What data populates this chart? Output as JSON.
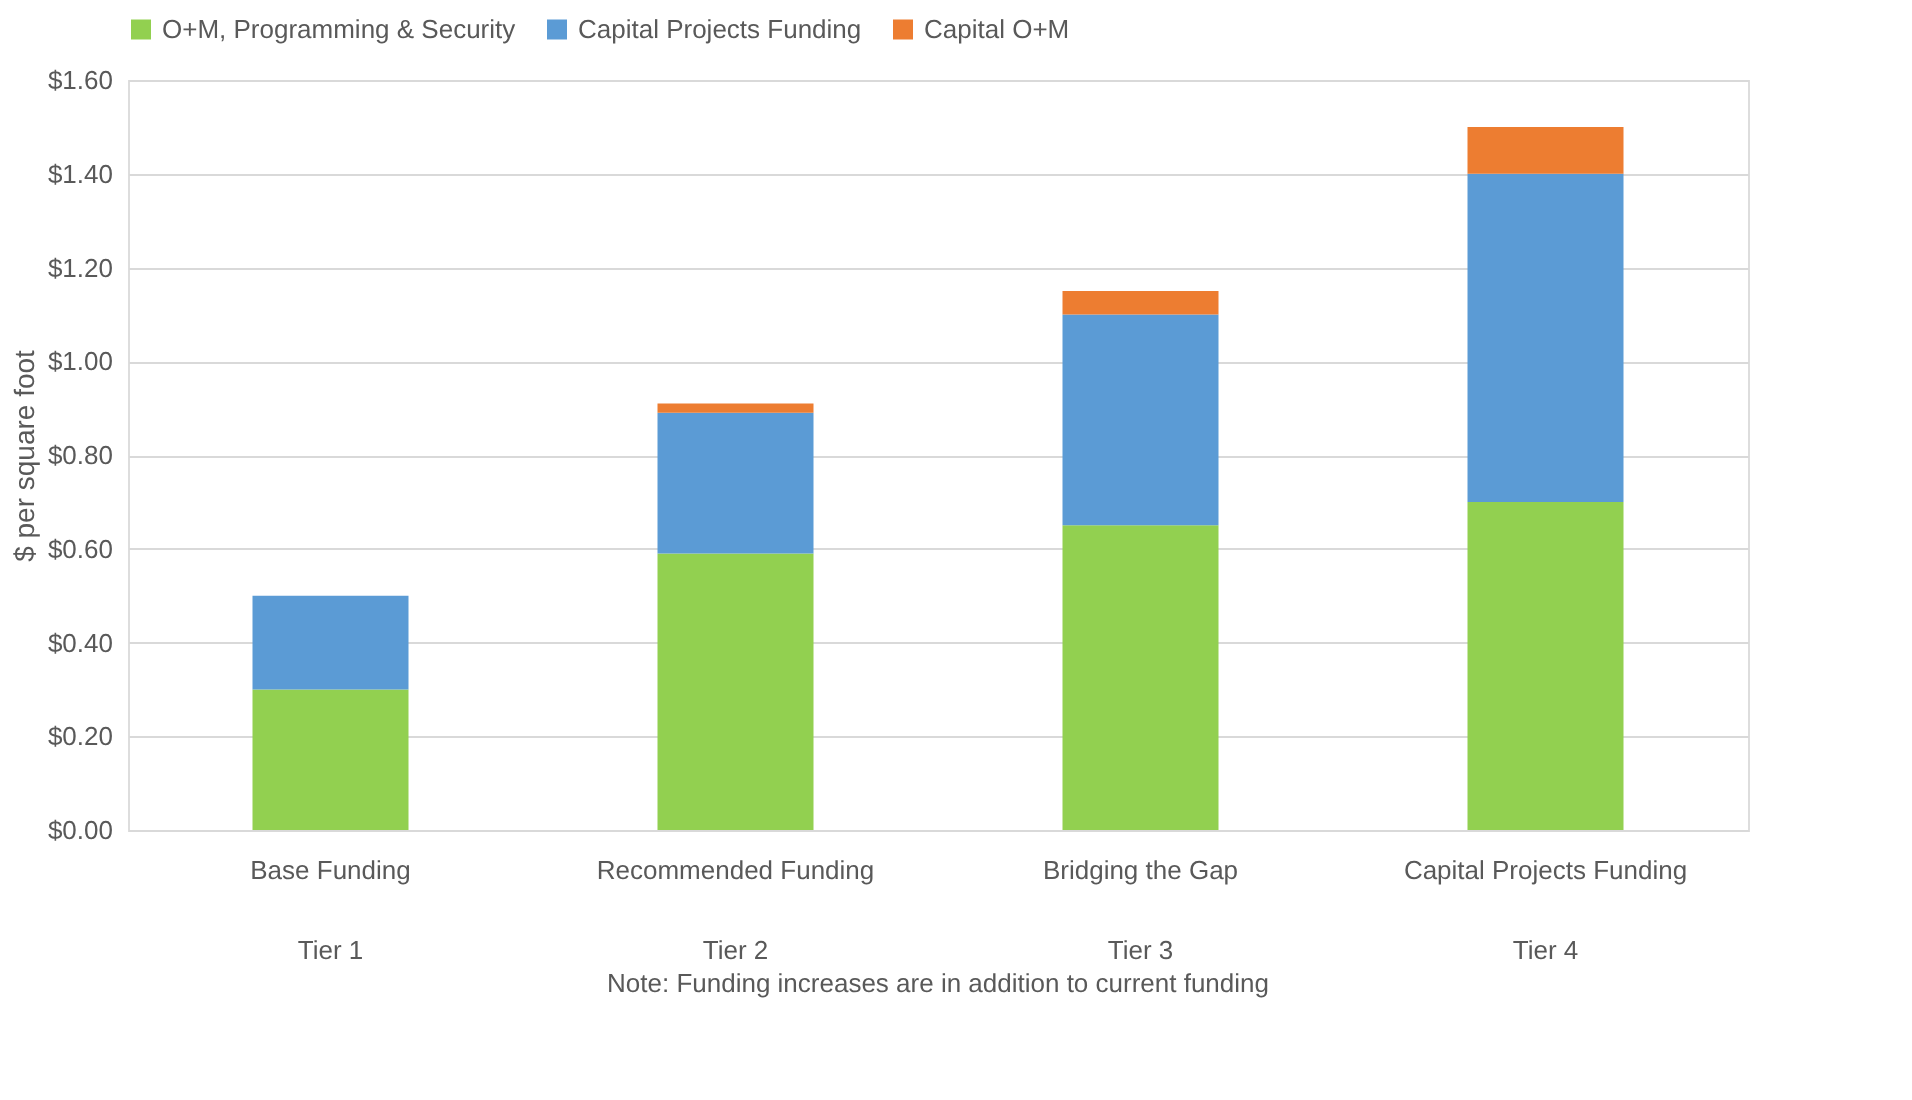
{
  "chart_data": {
    "type": "bar",
    "stacked": true,
    "ylabel": "$ per square foot",
    "categories": [
      "Base Funding\nTier 1",
      "Recommended Funding\nTier 2",
      "Bridging the Gap\nTier 3",
      "Capital Projects Funding\nTier 4"
    ],
    "series": [
      {
        "name": "O+M, Programming & Security",
        "color": "#92d050",
        "values": [
          0.3,
          0.59,
          0.65,
          0.7
        ]
      },
      {
        "name": "Capital Projects Funding",
        "color": "#5b9bd5",
        "values": [
          0.2,
          0.3,
          0.45,
          0.7
        ]
      },
      {
        "name": "Capital O+M",
        "color": "#ed7d31",
        "values": [
          0,
          0.02,
          0.05,
          0.1
        ]
      }
    ],
    "ylim": [
      0,
      1.6
    ],
    "yticks": [
      {
        "value": 0,
        "label": "$0.00"
      },
      {
        "value": 0.2,
        "label": "$0.20"
      },
      {
        "value": 0.4,
        "label": "$0.40"
      },
      {
        "value": 0.6,
        "label": "$0.60"
      },
      {
        "value": 0.8,
        "label": "$0.80"
      },
      {
        "value": 1.0,
        "label": "$1.00"
      },
      {
        "value": 1.2,
        "label": "$1.20"
      },
      {
        "value": 1.4,
        "label": "$1.40"
      },
      {
        "value": 1.6,
        "label": "$1.60"
      }
    ],
    "grid": "y",
    "legend": "top",
    "annotations": [
      "Note: Funding increases are in addition to current funding"
    ]
  }
}
